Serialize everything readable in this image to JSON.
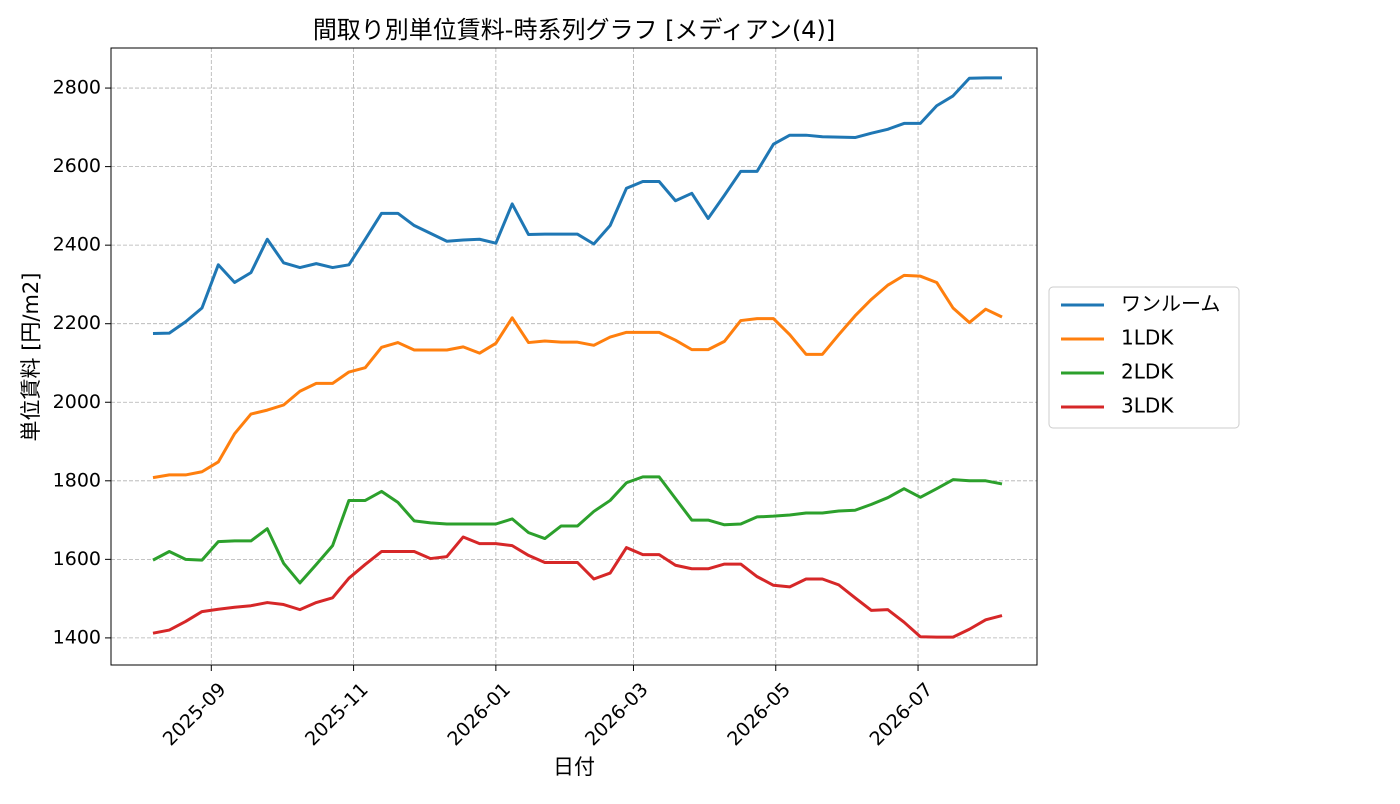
{
  "chart_data": {
    "type": "line",
    "title": "間取り別単位賃料-時系列グラフ [メディアン(4)]",
    "xlabel": "日付",
    "ylabel": "単位賃料 [円/m2]",
    "x": [
      "2025-08-07",
      "2025-08-14",
      "2025-08-21",
      "2025-08-28",
      "2025-09-04",
      "2025-09-11",
      "2025-09-18",
      "2025-09-25",
      "2025-10-02",
      "2025-10-09",
      "2025-10-16",
      "2025-10-23",
      "2025-10-30",
      "2025-11-06",
      "2025-11-13",
      "2025-11-20",
      "2025-11-27",
      "2025-12-04",
      "2025-12-11",
      "2025-12-18",
      "2025-12-25",
      "2026-01-01",
      "2026-01-08",
      "2026-01-15",
      "2026-01-22",
      "2026-01-29",
      "2026-02-05",
      "2026-02-12",
      "2026-02-19",
      "2026-02-26",
      "2026-03-05",
      "2026-03-12",
      "2026-03-19",
      "2026-03-26",
      "2026-04-02",
      "2026-04-09",
      "2026-04-16",
      "2026-04-23",
      "2026-04-30",
      "2026-05-07",
      "2026-05-14",
      "2026-05-21",
      "2026-05-28",
      "2026-06-04",
      "2026-06-11",
      "2026-06-18",
      "2026-06-25",
      "2026-07-02",
      "2026-07-09",
      "2026-07-16",
      "2026-07-23",
      "2026-07-30",
      "2026-08-06"
    ],
    "series": [
      {
        "name": "ワンルーム",
        "color": "#1f77b4",
        "values": [
          2175,
          2176,
          2205,
          2240,
          2350,
          2305,
          2330,
          2415,
          2355,
          2343,
          2353,
          2343,
          2350,
          2415,
          2481,
          2481,
          2450,
          2430,
          2410,
          2413,
          2415,
          2405,
          2505,
          2427,
          2428,
          2428,
          2428,
          2403,
          2450,
          2545,
          2562,
          2562,
          2513,
          2532,
          2468,
          2527,
          2588,
          2588,
          2657,
          2680,
          2680,
          2676,
          2675,
          2674,
          2685,
          2695,
          2710,
          2710,
          2755,
          2780,
          2825,
          2826,
          2826
        ]
      },
      {
        "name": "1LDK",
        "color": "#ff7f0e",
        "values": [
          1808,
          1815,
          1815,
          1823,
          1848,
          1920,
          1970,
          1980,
          1993,
          2028,
          2048,
          2048,
          2077,
          2088,
          2140,
          2152,
          2133,
          2133,
          2133,
          2141,
          2125,
          2150,
          2215,
          2152,
          2156,
          2153,
          2153,
          2145,
          2166,
          2178,
          2178,
          2178,
          2158,
          2134,
          2134,
          2155,
          2208,
          2213,
          2213,
          2172,
          2122,
          2122,
          2172,
          2220,
          2262,
          2298,
          2323,
          2321,
          2305,
          2240,
          2203,
          2237,
          2217
        ]
      },
      {
        "name": "2LDK",
        "color": "#2ca02c",
        "values": [
          1598,
          1620,
          1600,
          1598,
          1645,
          1647,
          1647,
          1678,
          1590,
          1540,
          1587,
          1635,
          1750,
          1750,
          1773,
          1745,
          1698,
          1693,
          1690,
          1690,
          1690,
          1690,
          1703,
          1668,
          1653,
          1685,
          1685,
          1722,
          1750,
          1795,
          1810,
          1810,
          1755,
          1700,
          1700,
          1688,
          1690,
          1708,
          1710,
          1713,
          1718,
          1718,
          1723,
          1725,
          1740,
          1757,
          1780,
          1758,
          1780,
          1803,
          1800,
          1800,
          1792
        ]
      },
      {
        "name": "3LDK",
        "color": "#d62728",
        "values": [
          1412,
          1420,
          1442,
          1467,
          1473,
          1478,
          1482,
          1490,
          1485,
          1472,
          1490,
          1502,
          1552,
          1587,
          1620,
          1620,
          1620,
          1602,
          1607,
          1657,
          1640,
          1640,
          1635,
          1610,
          1592,
          1592,
          1592,
          1550,
          1565,
          1630,
          1612,
          1612,
          1585,
          1576,
          1576,
          1588,
          1588,
          1556,
          1534,
          1530,
          1550,
          1550,
          1535,
          1502,
          1470,
          1472,
          1440,
          1403,
          1402,
          1402,
          1422,
          1446,
          1457
        ]
      }
    ],
    "xlim": [
      "2025-07-20",
      "2026-08-21"
    ],
    "xticks": [
      "2025-09",
      "2025-11",
      "2026-01",
      "2026-03",
      "2026-05",
      "2026-07"
    ],
    "ylim": [
      1331,
      2902
    ],
    "yticks": [
      1400,
      1600,
      1800,
      2000,
      2200,
      2400,
      2600,
      2800
    ],
    "grid": true,
    "legend": "right"
  }
}
